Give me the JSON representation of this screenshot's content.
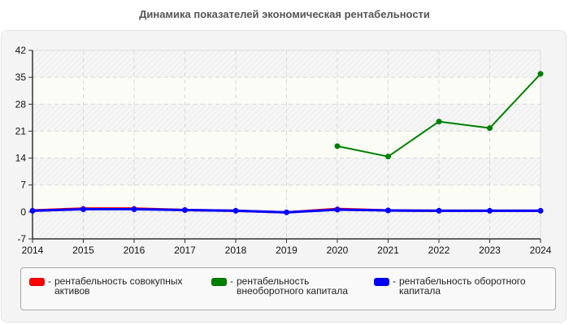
{
  "title": "Динамика показателей экономическая рентабельности",
  "legend": {
    "items": [
      {
        "label": "рентабельность совокупных активов",
        "line1": "рентабельность совокупных",
        "line2": "активов",
        "color": "#ff0000"
      },
      {
        "label": "рентабельность внеоборотного капитала",
        "line1": "рентабельность",
        "line2": "внеоборотного капитала",
        "color": "#008000"
      },
      {
        "label": "рентабельность оборотного капитала",
        "line1": "рентабельность оборотного",
        "line2": "капитала",
        "color": "#0000ff"
      }
    ]
  },
  "chart_data": {
    "type": "line",
    "title": "Динамика показателей экономическая рентабельности",
    "xlabel": "",
    "ylabel": "",
    "x": [
      2014,
      2015,
      2016,
      2017,
      2018,
      2019,
      2020,
      2021,
      2022,
      2023,
      2024
    ],
    "ylim": [
      -7,
      42
    ],
    "yticks": [
      -7,
      0,
      7,
      14,
      21,
      28,
      35,
      42
    ],
    "grid": true,
    "legend_position": "bottom",
    "series": [
      {
        "name": "рентабельность совокупных активов",
        "color": "#ff0000",
        "values": [
          0.4,
          0.9,
          0.9,
          0.5,
          0.3,
          -0.1,
          0.8,
          0.4,
          0.3,
          0.3,
          0.3
        ]
      },
      {
        "name": "рентабельность внеоборотного капитала",
        "color": "#008000",
        "values": [
          null,
          null,
          null,
          null,
          null,
          null,
          17.1,
          14.4,
          23.5,
          21.8,
          35.9
        ]
      },
      {
        "name": "рентабельность оборотного капитала",
        "color": "#0000ff",
        "values": [
          0.3,
          0.7,
          0.7,
          0.5,
          0.3,
          -0.1,
          0.6,
          0.4,
          0.3,
          0.3,
          0.3
        ]
      }
    ]
  }
}
